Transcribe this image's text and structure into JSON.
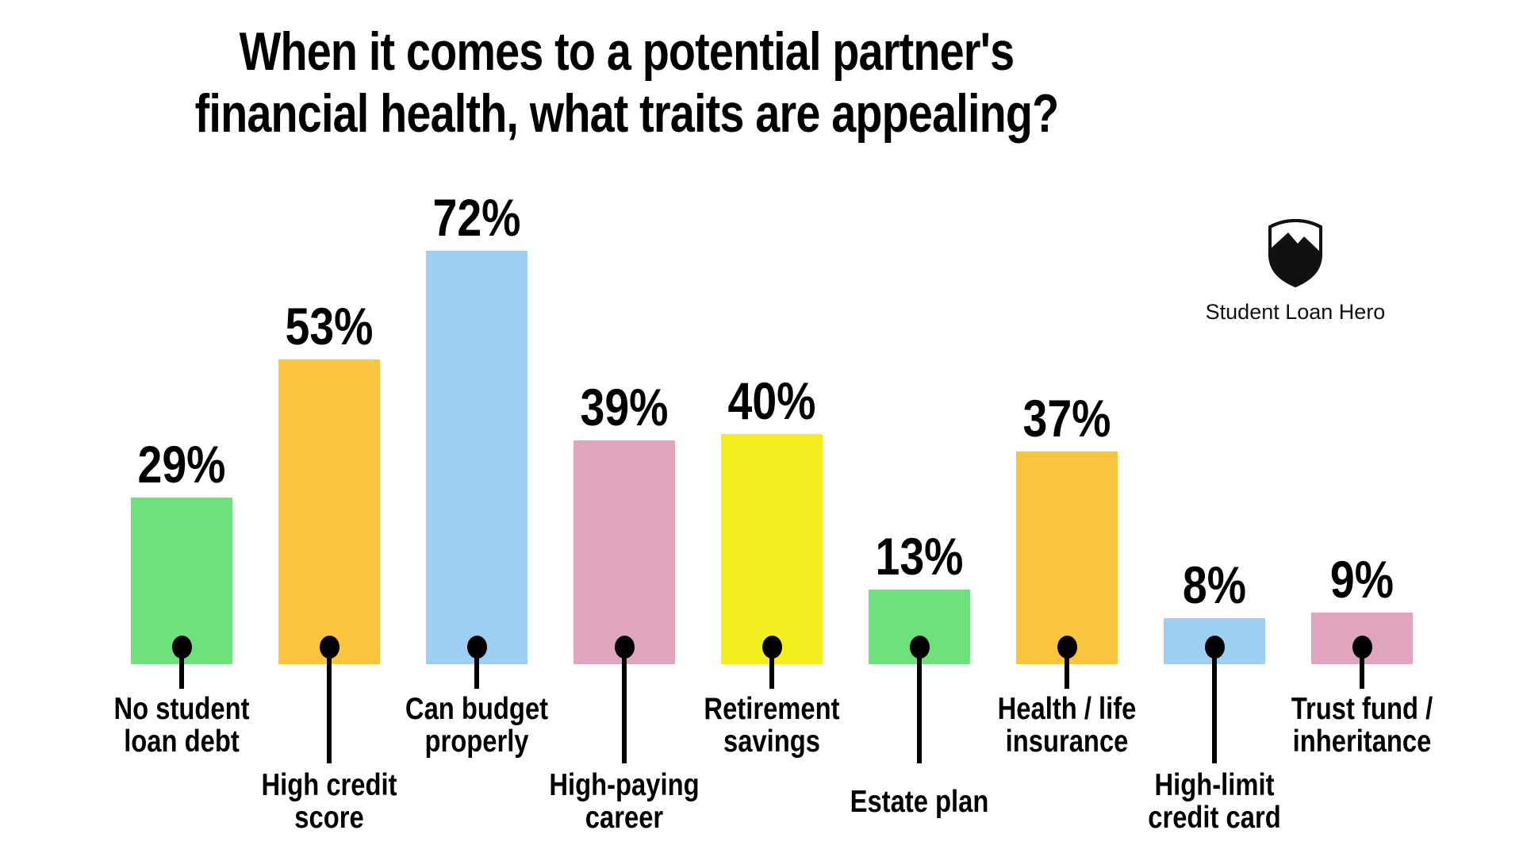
{
  "title": {
    "line1": "When it comes to a potential partner's",
    "line2": "financial health, what traits are appealing?"
  },
  "branding": {
    "name": "Student Loan Hero",
    "logo_icon": "shield-mountain-icon"
  },
  "colors": {
    "background": "#ffffff",
    "text": "#000000",
    "green": "#6ee07c",
    "orange": "#fcc33c",
    "blue": "#9dcff3",
    "pink": "#dfa5bf",
    "yellow": "#f5ee1e"
  },
  "chart_data": {
    "type": "bar",
    "title": "When it comes to a potential partner's financial health, what traits are appealing?",
    "categories": [
      "No student loan debt",
      "High credit score",
      "Can budget properly",
      "High-paying career",
      "Retirement savings",
      "Estate plan",
      "Health / life insurance",
      "High-limit credit card",
      "Trust fund / inheritance"
    ],
    "values": [
      29,
      53,
      72,
      39,
      40,
      13,
      37,
      8,
      9
    ],
    "value_labels": [
      "29%",
      "53%",
      "72%",
      "39%",
      "40%",
      "13%",
      "37%",
      "8%",
      "9%"
    ],
    "label_lines": [
      [
        "No student",
        "loan debt"
      ],
      [
        "High credit",
        "score"
      ],
      [
        "Can budget",
        "properly"
      ],
      [
        "High-paying",
        "career"
      ],
      [
        "Retirement",
        "savings"
      ],
      [
        "Estate plan"
      ],
      [
        "Health / life",
        "insurance"
      ],
      [
        "High-limit",
        "credit card"
      ],
      [
        "Trust fund /",
        "inheritance"
      ]
    ],
    "bar_colors": [
      "green",
      "orange",
      "blue",
      "pink",
      "yellow",
      "green",
      "orange",
      "blue",
      "pink"
    ],
    "label_row": [
      "upper",
      "lower",
      "upper",
      "lower",
      "upper",
      "lower",
      "upper",
      "lower",
      "upper"
    ],
    "xlabel": "",
    "ylabel": "",
    "ylim": [
      0,
      100
    ],
    "grid": false,
    "legend": "none",
    "value_label_position": "above-bar",
    "unit": "%"
  }
}
